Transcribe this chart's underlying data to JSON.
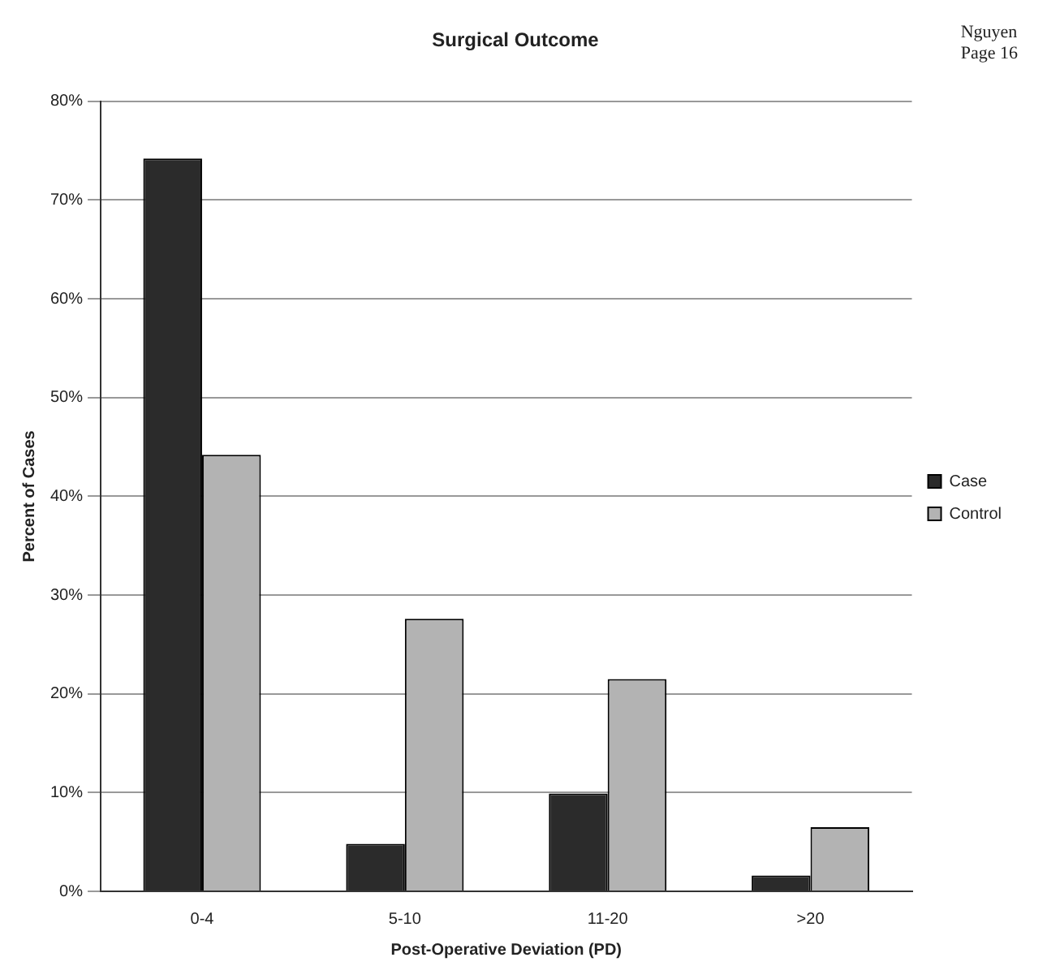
{
  "chart_data": {
    "type": "bar",
    "title": "Surgical Outcome",
    "xlabel": "Post-Operative Deviation (PD)",
    "ylabel": "Percent of Cases",
    "annotations": [
      "Nguyen",
      "Page 16"
    ],
    "categories": [
      "0-4",
      "5-10",
      "11-20",
      ">20"
    ],
    "series": [
      {
        "name": "Case",
        "color": "#2b2b2b",
        "values": [
          74.2,
          4.8,
          9.9,
          1.6
        ]
      },
      {
        "name": "Control",
        "color": "#b3b3b3",
        "values": [
          44.2,
          27.6,
          21.5,
          6.5
        ]
      }
    ],
    "ylim": [
      0,
      80
    ],
    "yticks": [
      {
        "value": 0,
        "label": "0%"
      },
      {
        "value": 10,
        "label": "10%"
      },
      {
        "value": 20,
        "label": "20%"
      },
      {
        "value": 30,
        "label": "30%"
      },
      {
        "value": 40,
        "label": "40%"
      },
      {
        "value": 50,
        "label": "50%"
      },
      {
        "value": 60,
        "label": "60%"
      },
      {
        "value": 70,
        "label": "70%"
      },
      {
        "value": 80,
        "label": "80%"
      }
    ],
    "grid": "y",
    "legend": "right"
  }
}
